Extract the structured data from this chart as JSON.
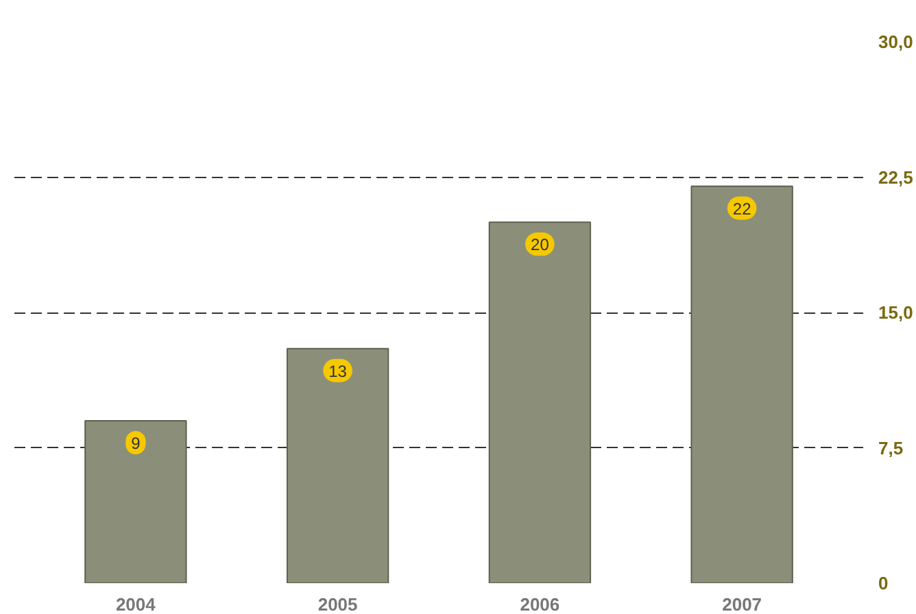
{
  "chart_data": {
    "type": "bar",
    "categories": [
      "2004",
      "2005",
      "2006",
      "2007"
    ],
    "values": [
      9,
      13,
      20,
      22
    ],
    "color": "#8b8f7a",
    "data_labels": true,
    "ylim": [
      0,
      30
    ],
    "yticks": [
      0,
      {
        "value": 7.5,
        "label": "7,5"
      },
      {
        "value": 15,
        "label": "15,0"
      },
      {
        "value": 22.5,
        "label": "22,5"
      },
      {
        "value": 30,
        "label": "30,0"
      }
    ],
    "grid": "y",
    "line_style": "dashed"
  }
}
